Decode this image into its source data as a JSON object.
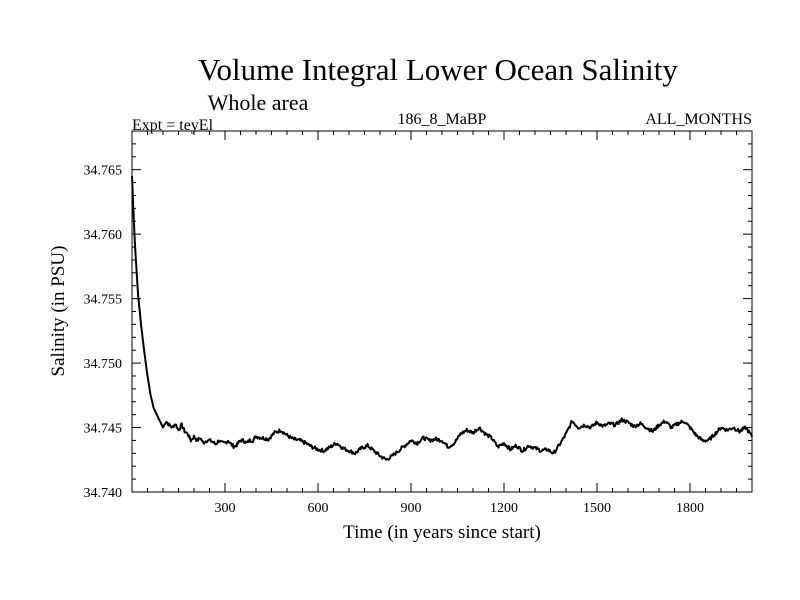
{
  "chart_data": {
    "type": "line",
    "title": "Volume Integral Lower Ocean Salinity",
    "subtitle": "Whole area",
    "expt_label": "Expt = teyEl",
    "run_label": "186_8_MaBP",
    "period_label": "ALL_MONTHS",
    "xlabel": "Time (in years since start)",
    "ylabel": "Salinity (in PSU)",
    "xlim": [
      0,
      2000
    ],
    "ylim": [
      34.74,
      34.768
    ],
    "xticks": [
      300,
      600,
      900,
      1200,
      1500,
      1800
    ],
    "xtick_labels": [
      "300",
      "600",
      "900",
      "1200",
      "1500",
      "1800"
    ],
    "yticks": [
      34.74,
      34.745,
      34.75,
      34.755,
      34.76,
      34.765
    ],
    "ytick_labels": [
      "34.740",
      "34.745",
      "34.750",
      "34.755",
      "34.760",
      "34.765"
    ],
    "grid": false,
    "series": [
      {
        "name": "Salinity",
        "x": [
          0,
          5,
          10,
          15,
          20,
          30,
          40,
          50,
          60,
          70,
          80,
          90,
          100,
          110,
          120,
          130,
          140,
          150,
          160,
          170,
          180,
          190,
          200,
          210,
          220,
          230,
          240,
          250,
          260,
          270,
          280,
          290,
          300,
          310,
          320,
          330,
          340,
          350,
          360,
          370,
          380,
          390,
          400,
          420,
          440,
          460,
          480,
          500,
          520,
          540,
          560,
          580,
          600,
          620,
          640,
          660,
          680,
          700,
          720,
          740,
          760,
          780,
          800,
          820,
          840,
          860,
          880,
          900,
          920,
          940,
          960,
          980,
          1000,
          1020,
          1040,
          1060,
          1080,
          1100,
          1120,
          1140,
          1160,
          1180,
          1200,
          1220,
          1240,
          1260,
          1280,
          1300,
          1320,
          1340,
          1360,
          1380,
          1400,
          1410,
          1420,
          1440,
          1460,
          1480,
          1500,
          1520,
          1540,
          1560,
          1580,
          1600,
          1620,
          1640,
          1660,
          1680,
          1700,
          1720,
          1740,
          1760,
          1780,
          1800,
          1820,
          1840,
          1860,
          1880,
          1900,
          1920,
          1940,
          1960,
          1980,
          2000
        ],
        "values": [
          34.7645,
          34.7615,
          34.759,
          34.757,
          34.7552,
          34.7528,
          34.7508,
          34.749,
          34.7475,
          34.7465,
          34.746,
          34.7455,
          34.745,
          34.7455,
          34.7452,
          34.745,
          34.7453,
          34.7448,
          34.7452,
          34.7447,
          34.7445,
          34.744,
          34.7443,
          34.744,
          34.7442,
          34.7438,
          34.744,
          34.744,
          34.7439,
          34.7437,
          34.744,
          34.7438,
          34.7438,
          34.744,
          34.7437,
          34.7435,
          34.7437,
          34.744,
          34.744,
          34.7438,
          34.744,
          34.744,
          34.7443,
          34.7442,
          34.7441,
          34.7446,
          34.7448,
          34.7444,
          34.7441,
          34.744,
          34.7438,
          34.7435,
          34.7433,
          34.7432,
          34.7435,
          34.7438,
          34.7434,
          34.7432,
          34.743,
          34.7434,
          34.7436,
          34.7432,
          34.7428,
          34.7425,
          34.7428,
          34.7432,
          34.7436,
          34.744,
          34.7438,
          34.7442,
          34.744,
          34.7441,
          34.744,
          34.7435,
          34.7438,
          34.7445,
          34.7448,
          34.7446,
          34.745,
          34.7445,
          34.7442,
          34.7435,
          34.7438,
          34.7433,
          34.7436,
          34.7432,
          34.7436,
          34.7434,
          34.7432,
          34.7433,
          34.743,
          34.7437,
          34.7445,
          34.745,
          34.7455,
          34.745,
          34.7452,
          34.745,
          34.7454,
          34.7451,
          34.7453,
          34.7452,
          34.7456,
          34.7454,
          34.7451,
          34.7453,
          34.745,
          34.7447,
          34.7452,
          34.7455,
          34.745,
          34.7453,
          34.7455,
          34.745,
          34.7444,
          34.744,
          34.744,
          34.7445,
          34.745,
          34.7448,
          34.745,
          34.7447,
          34.745,
          34.7443
        ]
      }
    ]
  }
}
